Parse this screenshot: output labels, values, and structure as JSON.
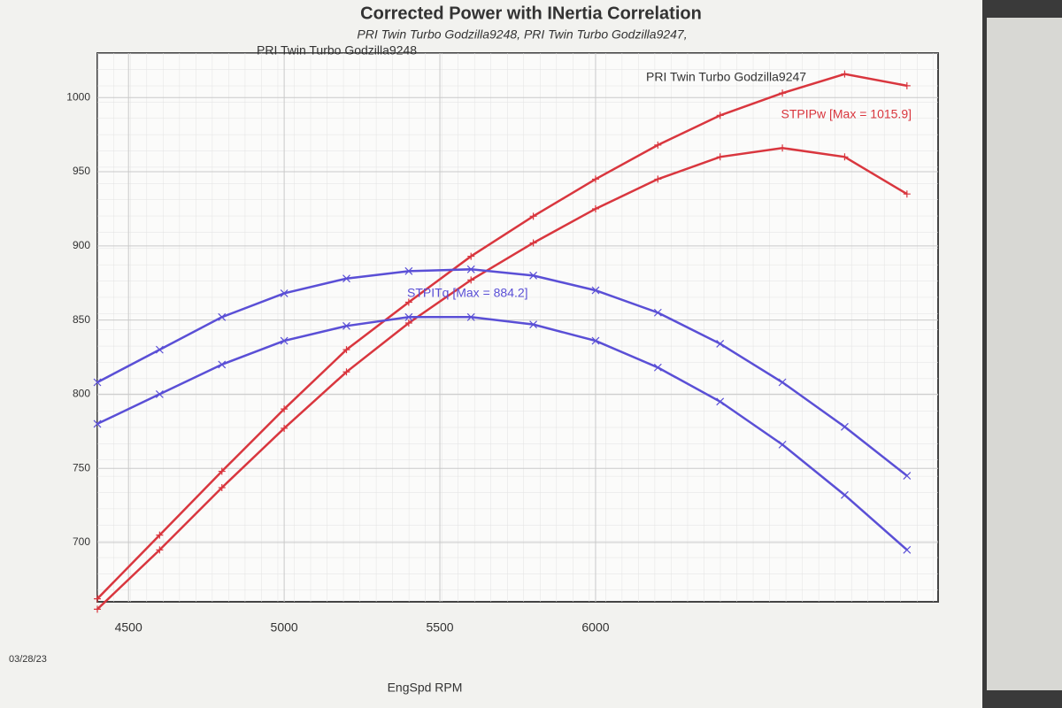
{
  "chart_data": {
    "type": "line",
    "title": "Corrected Power with INertia Correlation",
    "subtitle": "PRI Twin Turbo Godzilla9248, PRI Twin Turbo Godzilla9247,",
    "x_label": "EngSpd RPM",
    "date": "03/28/23",
    "annotations": [
      "STPIPw [Max = 1015.9]",
      "STPITq [Max = 884.2]"
    ],
    "annotation_colors": [
      "#d9363e",
      "#5a4fd6"
    ],
    "x": [
      4400,
      4600,
      4800,
      5000,
      5200,
      5400,
      5600,
      5800,
      6000,
      6200,
      6400,
      6600,
      6800,
      7000
    ],
    "series": [
      {
        "name": "PRI Twin Turbo Godzilla9248",
        "color": "#d9363e",
        "marker": "+",
        "values": [
          662,
          705,
          748,
          790,
          830,
          862,
          893,
          920,
          945,
          968,
          988,
          1003,
          1015.9,
          1008
        ]
      },
      {
        "name": "PRI Twin Turbo Godzilla9247",
        "color": "#d9363e",
        "marker": "+",
        "values": [
          655,
          695,
          737,
          777,
          815,
          848,
          877,
          902,
          925,
          945,
          960,
          966,
          960,
          935
        ]
      },
      {
        "color": "#5a4fd6",
        "marker": "x",
        "values": [
          808,
          830,
          852,
          868,
          878,
          883,
          884.2,
          880,
          870,
          855,
          834,
          808,
          778,
          745
        ]
      },
      {
        "color": "#5a4fd6",
        "marker": "x",
        "values": [
          780,
          800,
          820,
          836,
          846,
          852,
          852,
          847,
          836,
          818,
          795,
          766,
          732,
          695
        ]
      }
    ],
    "xlim": [
      4400,
      7100
    ],
    "xticks": [
      4500,
      5000,
      5500,
      6000
    ],
    "ylim": [
      660,
      1030
    ],
    "yticks": [
      700,
      750,
      800,
      850,
      900,
      950,
      1000
    ],
    "grid": true
  }
}
